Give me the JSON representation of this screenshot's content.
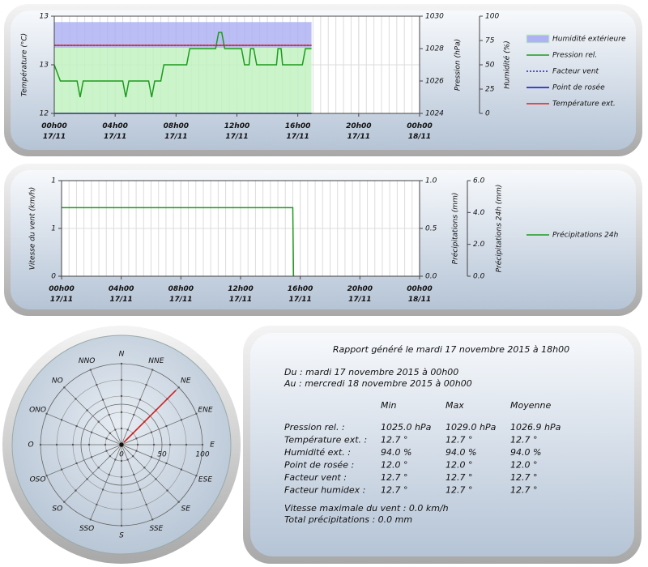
{
  "chart_data": [
    {
      "type": "line",
      "y_label": "Température (°C)",
      "y2_label": "Pression (hPa)",
      "y3_label": "Humidité (%)",
      "xlim": [
        0,
        24
      ],
      "xticks": [
        {
          "value": 0,
          "label": "00h00\n17/11"
        },
        {
          "value": 4,
          "label": "04h00\n17/11"
        },
        {
          "value": 8,
          "label": "08h00\n17/11"
        },
        {
          "value": 12,
          "label": "12h00\n17/11"
        },
        {
          "value": 16,
          "label": "16h00\n17/11"
        },
        {
          "value": 20,
          "label": "20h00\n17/11"
        },
        {
          "value": 24,
          "label": "00h00\n18/11"
        }
      ],
      "ylim": [
        12,
        13
      ],
      "yticks": [
        12,
        {
          "value": 12.5,
          "label": "13"
        },
        13
      ],
      "y2lim": [
        1024,
        1030
      ],
      "y2ticks": [
        1024,
        1026,
        1028,
        1030
      ],
      "y3lim": [
        0,
        100
      ],
      "y3ticks": [
        0,
        25,
        50,
        75,
        100
      ],
      "grid": true,
      "series": [
        {
          "name": "Humidité extérieure",
          "style": "area",
          "axis": "y3",
          "colors": [
            "#aeb2f2",
            "#c2f2c2"
          ],
          "x": [
            0,
            16.9
          ],
          "values": [
            94,
            94
          ]
        },
        {
          "name": "Pression rel.",
          "style": "line",
          "axis": "y2",
          "color": "#1e9a1e",
          "x": [
            0,
            0.4,
            1.5,
            1.7,
            1.9,
            4.5,
            4.7,
            4.9,
            6.2,
            6.4,
            6.6,
            7.0,
            7.2,
            8.7,
            8.9,
            10.6,
            10.8,
            11.0,
            11.2,
            12.3,
            12.5,
            12.8,
            12.9,
            13.1,
            13.3,
            14.6,
            14.7,
            14.9,
            15.0,
            16.3,
            16.5,
            16.9
          ],
          "values": [
            1027,
            1026,
            1026,
            1025,
            1026,
            1026,
            1025,
            1026,
            1026,
            1025,
            1026,
            1026,
            1027,
            1027,
            1028,
            1028,
            1029,
            1029,
            1028,
            1028,
            1027,
            1027,
            1028,
            1028,
            1027,
            1027,
            1028,
            1028,
            1027,
            1027,
            1028,
            1028
          ]
        },
        {
          "name": "Facteur vent",
          "style": "dotted",
          "axis": "y",
          "color": "#2020d0",
          "x": [
            0,
            16.9
          ],
          "values": [
            12.7,
            12.7
          ]
        },
        {
          "name": "Point de rosée",
          "style": "line",
          "axis": "y",
          "color": "#1010c0",
          "x": [
            0,
            16.9
          ],
          "values": [
            12.0,
            12.0
          ]
        },
        {
          "name": "Température ext.",
          "style": "line",
          "axis": "y",
          "color": "#e02020",
          "x": [
            0,
            16.9
          ],
          "values": [
            12.7,
            12.7
          ]
        }
      ]
    },
    {
      "type": "line",
      "y_label": "Vitesse du vent (km/h)",
      "y2_label": "Précipitations (mm)",
      "y3_label": "Précipitations 24h (mm)",
      "xlim": [
        0,
        24
      ],
      "xticks": [
        {
          "value": 0,
          "label": "00h00\n17/11"
        },
        {
          "value": 4,
          "label": "04h00\n17/11"
        },
        {
          "value": 8,
          "label": "08h00\n17/11"
        },
        {
          "value": 12,
          "label": "12h00\n17/11"
        },
        {
          "value": 16,
          "label": "16h00\n17/11"
        },
        {
          "value": 20,
          "label": "20h00\n17/11"
        },
        {
          "value": 24,
          "label": "00h00\n18/11"
        }
      ],
      "ylim": [
        0,
        1
      ],
      "yticks": [
        0,
        {
          "value": 0.5,
          "label": "1"
        },
        1
      ],
      "y2lim": [
        0,
        1
      ],
      "y2ticks": [
        {
          "value": 0,
          "label": "0.0"
        },
        0.5,
        {
          "value": 1,
          "label": "1.0"
        }
      ],
      "y3lim": [
        0,
        6
      ],
      "y3ticks": [
        {
          "value": 0,
          "label": "0.0"
        },
        {
          "value": 2,
          "label": "2.0"
        },
        {
          "value": 4,
          "label": "4.0"
        },
        {
          "value": 6,
          "label": "6.0"
        }
      ],
      "grid": true,
      "series": [
        {
          "name": "Vitesse du vent",
          "style": "area",
          "axis": "y",
          "colors": [
            "#e6a3ab",
            "#e6a3ab"
          ],
          "x": [],
          "values": []
        },
        {
          "name": "Précipitations",
          "style": "area",
          "axis": "y2",
          "colors": [
            "#8e97ea",
            "#8e97ea"
          ],
          "x": [],
          "values": []
        },
        {
          "name": "Précipitations 24h",
          "style": "line",
          "axis": "y3",
          "color": "#1e9a1e",
          "x": [
            0,
            15.5,
            15.55
          ],
          "values": [
            4.3,
            4.3,
            0
          ]
        }
      ]
    },
    {
      "type": "polar",
      "directions": [
        "N",
        "NNE",
        "NE",
        "ENE",
        "E",
        "ESE",
        "SE",
        "SSE",
        "S",
        "SSO",
        "SO",
        "OSO",
        "O",
        "ONO",
        "NO",
        "NNO"
      ],
      "rlim": [
        0,
        100
      ],
      "rticks": [
        0,
        50,
        100
      ],
      "color": "#d02020",
      "values": [
        0,
        0,
        95,
        0,
        0,
        0,
        0,
        0,
        0,
        0,
        0,
        0,
        0,
        0,
        0,
        0
      ]
    }
  ],
  "report": {
    "title": "Rapport généré le mardi 17 novembre 2015 à 18h00",
    "from": "Du : mardi 17 novembre 2015 à 00h00",
    "to": "Au : mercredi 18 novembre 2015 à 00h00",
    "columns": [
      "Min",
      "Max",
      "Moyenne"
    ],
    "rows": [
      [
        "Pression rel. :",
        "1025.0 hPa",
        "1029.0 hPa",
        "1026.9 hPa"
      ],
      [
        "Température ext. :",
        "12.7 °",
        "12.7 °",
        "12.7 °"
      ],
      [
        "Humidité ext. :",
        "94.0 %",
        "94.0 %",
        "94.0 %"
      ],
      [
        "Point de rosée :",
        "12.0 °",
        "12.0 °",
        "12.0 °"
      ],
      [
        "Facteur vent :",
        "12.7 °",
        "12.7 °",
        "12.7 °"
      ],
      [
        "Facteur humidex :",
        "12.7 °",
        "12.7 °",
        "12.7 °"
      ]
    ],
    "wind_max": "Vitesse maximale du vent : 0.0 km/h",
    "rain_total": "Total précipitations : 0.0 mm"
  }
}
